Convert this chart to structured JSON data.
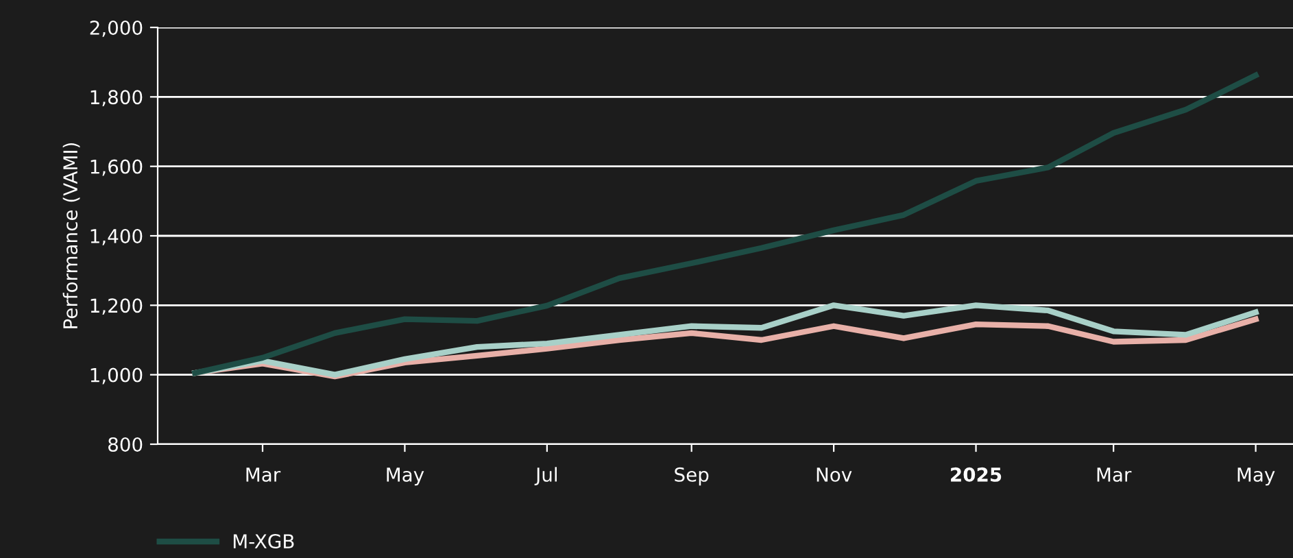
{
  "chart_data": {
    "type": "line",
    "ylabel": "Performance (VAMI)",
    "x": [
      "2024-02-01",
      "2024-03-01",
      "2024-04-01",
      "2024-05-01",
      "2024-06-01",
      "2024-07-01",
      "2024-08-01",
      "2024-09-01",
      "2024-10-01",
      "2024-11-01",
      "2024-12-01",
      "2025-01-01",
      "2025-02-01",
      "2025-03-01",
      "2025-04-01",
      "2025-05-01"
    ],
    "series": [
      {
        "name": "M-XGB",
        "color": "#1e4d45",
        "values": [
          1005,
          1049,
          1120,
          1160,
          1155,
          1199,
          1278,
          1321,
          1365,
          1416,
          1460,
          1558,
          1597,
          1696,
          1763,
          1862
        ]
      },
      {
        "color": "#a8d0c8",
        "values": [
          1005,
          1040,
          1000,
          1045,
          1080,
          1090,
          1115,
          1140,
          1135,
          1200,
          1170,
          1200,
          1185,
          1125,
          1115,
          1180
        ]
      },
      {
        "color": "#e8b0a8",
        "values": [
          1005,
          1032,
          995,
          1035,
          1055,
          1075,
          1100,
          1120,
          1100,
          1140,
          1105,
          1145,
          1140,
          1095,
          1100,
          1160
        ]
      }
    ],
    "xlim": [
      "2024-01-16",
      "2025-05-17"
    ],
    "xticks": [
      {
        "value": "2024-03-01",
        "label": "Mar"
      },
      {
        "value": "2024-05-01",
        "label": "May"
      },
      {
        "value": "2024-07-01",
        "label": "Jul"
      },
      {
        "value": "2024-09-01",
        "label": "Sep"
      },
      {
        "value": "2024-11-01",
        "label": "Nov"
      },
      {
        "value": "2025-01-01",
        "label": "2025"
      },
      {
        "value": "2025-03-01",
        "label": "Mar"
      },
      {
        "value": "2025-05-01",
        "label": "May"
      }
    ],
    "ylim": [
      800,
      2000
    ],
    "yticks": [
      {
        "value": 800,
        "label": "800"
      },
      {
        "value": 1000,
        "label": "1,000"
      },
      {
        "value": 1200,
        "label": "1,200"
      },
      {
        "value": 1400,
        "label": "1,400"
      },
      {
        "value": 1600,
        "label": "1,600"
      },
      {
        "value": 1800,
        "label": "1,800"
      },
      {
        "value": 2000,
        "label": "2,000"
      }
    ],
    "grid": "y",
    "legend": "bottom",
    "marker": "none",
    "line_style": "solid"
  }
}
